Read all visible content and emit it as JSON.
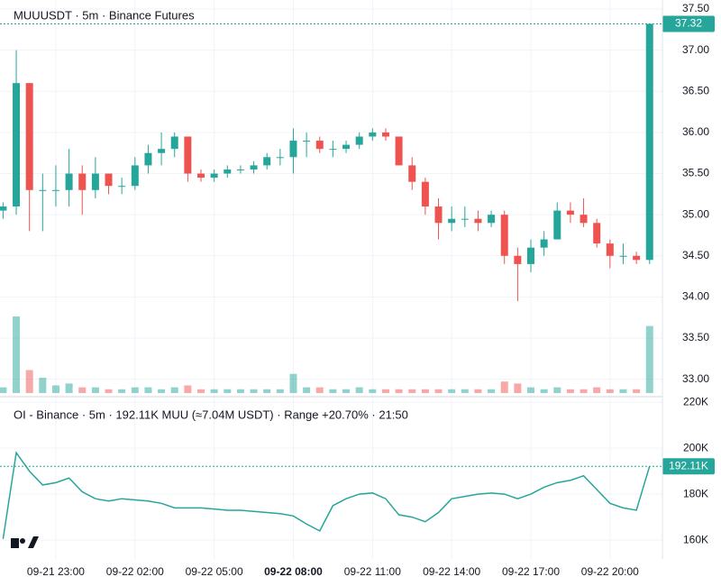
{
  "chart_data": [
    {
      "type": "candlestick",
      "title": "MUUUSDT · 5m · Binance Futures",
      "categories": [
        null,
        null,
        null,
        null,
        "09-21 23:00",
        null,
        null,
        null,
        null,
        null,
        "09-22 02:00",
        null,
        null,
        null,
        null,
        null,
        "09-22 05:00",
        null,
        null,
        null,
        null,
        null,
        "09-22 08:00",
        null,
        null,
        null,
        null,
        null,
        "09-22 11:00",
        null,
        null,
        null,
        null,
        null,
        "09-22 14:00",
        null,
        null,
        null,
        null,
        null,
        "09-22 17:00",
        null,
        null,
        null,
        null,
        null,
        "09-22 20:00",
        null,
        null,
        null
      ],
      "x_bold_index": 22,
      "open": [
        35.05,
        35.1,
        36.6,
        35.3,
        35.3,
        35.3,
        35.5,
        35.3,
        35.5,
        35.35,
        35.35,
        35.6,
        35.75,
        35.8,
        35.95,
        35.5,
        35.45,
        35.5,
        35.55,
        35.55,
        35.6,
        35.7,
        35.7,
        35.9,
        35.9,
        35.8,
        35.8,
        35.85,
        35.95,
        36.0,
        35.95,
        35.6,
        35.4,
        35.1,
        34.9,
        34.95,
        34.95,
        34.9,
        35.0,
        34.5,
        34.4,
        34.6,
        34.7,
        35.05,
        35.0,
        34.9,
        34.65,
        34.5,
        34.5,
        34.45
      ],
      "high": [
        35.15,
        37.0,
        36.6,
        35.5,
        35.6,
        35.8,
        35.6,
        35.7,
        35.5,
        35.45,
        35.7,
        35.85,
        36.0,
        36.0,
        35.95,
        35.55,
        35.55,
        35.6,
        35.6,
        35.65,
        35.75,
        35.8,
        36.05,
        36.0,
        35.95,
        35.9,
        35.9,
        36.0,
        36.05,
        36.05,
        35.95,
        35.7,
        35.45,
        35.2,
        35.1,
        35.1,
        35.05,
        35.05,
        35.05,
        34.6,
        34.7,
        34.8,
        35.15,
        35.15,
        35.2,
        34.95,
        34.7,
        34.65,
        34.55,
        37.32
      ],
      "low": [
        34.95,
        35.0,
        34.8,
        34.8,
        35.1,
        35.1,
        35.0,
        35.2,
        35.25,
        35.25,
        35.3,
        35.5,
        35.6,
        35.7,
        35.4,
        35.4,
        35.4,
        35.45,
        35.5,
        35.5,
        35.55,
        35.6,
        35.5,
        35.7,
        35.75,
        35.7,
        35.75,
        35.8,
        35.9,
        35.9,
        35.6,
        35.3,
        35.0,
        34.7,
        34.8,
        34.85,
        34.8,
        34.85,
        34.4,
        33.95,
        34.3,
        34.5,
        34.7,
        34.9,
        34.85,
        34.6,
        34.35,
        34.4,
        34.4,
        34.4
      ],
      "close": [
        35.1,
        36.6,
        35.3,
        35.3,
        35.3,
        35.5,
        35.3,
        35.5,
        35.35,
        35.35,
        35.6,
        35.75,
        35.8,
        35.95,
        35.5,
        35.45,
        35.5,
        35.55,
        35.55,
        35.6,
        35.7,
        35.7,
        35.9,
        35.9,
        35.8,
        35.8,
        35.85,
        35.95,
        36.0,
        35.95,
        35.6,
        35.4,
        35.1,
        34.9,
        34.95,
        34.95,
        34.9,
        35.0,
        34.5,
        34.4,
        34.6,
        34.7,
        35.05,
        35.0,
        34.9,
        34.65,
        34.5,
        34.5,
        34.45,
        37.32
      ],
      "volume": [
        3,
        40,
        12,
        8,
        4,
        5,
        3,
        3,
        2,
        2,
        3,
        3,
        2,
        3,
        4,
        2,
        2,
        2,
        2,
        2,
        2,
        2,
        10,
        3,
        3,
        2,
        2,
        3,
        2,
        2,
        2,
        2,
        2,
        2,
        2,
        2,
        2,
        2,
        6,
        5,
        3,
        2,
        3,
        2,
        2,
        3,
        2,
        2,
        2,
        35
      ],
      "current": {
        "value": 37.32,
        "label": "37.32"
      },
      "up_color": "#26a69a",
      "down_color": "#ef5350",
      "ylim": [
        32.81,
        37.61
      ],
      "yticks": [
        {
          "value": 33,
          "label": "33.00"
        },
        {
          "value": 33.5,
          "label": "33.50"
        },
        {
          "value": 34,
          "label": "34.00"
        },
        {
          "value": 34.5,
          "label": "34.50"
        },
        {
          "value": 35,
          "label": "35.00"
        },
        {
          "value": 35.5,
          "label": "35.50"
        },
        {
          "value": 36,
          "label": "36.00"
        },
        {
          "value": 36.5,
          "label": "36.50"
        },
        {
          "value": 37,
          "label": "37.00"
        },
        {
          "value": 37.5,
          "label": "37.50"
        }
      ],
      "grid": true
    },
    {
      "type": "line",
      "title": "OI - Binance · 5m · 192.11K MUU (≈7.04M USDT) · Range +20.70% · 21:50",
      "values": [
        160500,
        198000,
        190000,
        184000,
        185000,
        187000,
        181000,
        178000,
        177000,
        178000,
        177500,
        177000,
        176000,
        174000,
        174000,
        174000,
        173500,
        173000,
        173000,
        172500,
        172000,
        171500,
        170500,
        167000,
        164000,
        175000,
        178000,
        180000,
        180500,
        178000,
        171000,
        170000,
        168000,
        172000,
        178000,
        179000,
        180000,
        180500,
        180000,
        178000,
        180000,
        183000,
        185000,
        186000,
        188000,
        182000,
        176000,
        174000,
        173000,
        192110
      ],
      "current": {
        "value": 192110,
        "label": "192.11K"
      },
      "color": "#26a69a",
      "ylim": [
        151800,
        222000
      ],
      "yticks": [
        {
          "value": 160000,
          "label": "160K"
        },
        {
          "value": 180000,
          "label": "180K"
        },
        {
          "value": 200000,
          "label": "200K"
        },
        {
          "value": 220000,
          "label": "220K"
        }
      ],
      "grid": true
    }
  ]
}
